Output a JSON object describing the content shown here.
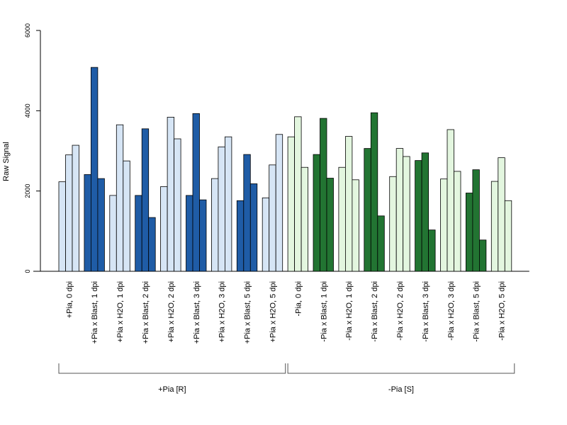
{
  "chart_data": {
    "type": "bar",
    "ylabel": "Raw Signal",
    "xlabel": "",
    "ylim": [
      0,
      6000
    ],
    "yticks": [
      0,
      2000,
      4000,
      6000
    ],
    "grid": false,
    "colors": {
      "pia_plus_control": "#d6e5f5",
      "pia_plus_blast": "#1f5ca6",
      "pia_minus_control": "#e3f6df",
      "pia_minus_blast": "#227432"
    },
    "categories": [
      {
        "label": "+Pia, 0 dpi",
        "values": [
          2230,
          2900,
          3140
        ],
        "color_key": "pia_plus_control"
      },
      {
        "label": "+Pia x Blast, 1 dpi",
        "values": [
          2410,
          5080,
          2310
        ],
        "color_key": "pia_plus_blast"
      },
      {
        "label": "+Pia x H2O, 1 dpi",
        "values": [
          1890,
          3650,
          2750
        ],
        "color_key": "pia_plus_control"
      },
      {
        "label": "+Pia x Blast, 2 dpi",
        "values": [
          1890,
          3550,
          1340
        ],
        "color_key": "pia_plus_blast"
      },
      {
        "label": "+Pia x H2O, 2 dpi",
        "values": [
          2110,
          3840,
          3300
        ],
        "color_key": "pia_plus_control"
      },
      {
        "label": "+Pia x Blast, 3 dpi",
        "values": [
          1890,
          3930,
          1780
        ],
        "color_key": "pia_plus_blast"
      },
      {
        "label": "+Pia x H2O, 3 dpi",
        "values": [
          2310,
          3100,
          3350
        ],
        "color_key": "pia_plus_control"
      },
      {
        "label": "+Pia x Blast, 5 dpi",
        "values": [
          1760,
          2910,
          2180
        ],
        "color_key": "pia_plus_blast"
      },
      {
        "label": "+Pia x H2O, 5 dpi",
        "values": [
          1830,
          2650,
          3410
        ],
        "color_key": "pia_plus_control"
      },
      {
        "label": "-Pia, 0 dpi",
        "values": [
          3350,
          3850,
          2590
        ],
        "color_key": "pia_minus_control"
      },
      {
        "label": "-Pia x Blast, 1 dpi",
        "values": [
          2910,
          3810,
          2320
        ],
        "color_key": "pia_minus_blast"
      },
      {
        "label": "-Pia x H2O, 1 dpi",
        "values": [
          2590,
          3360,
          2280
        ],
        "color_key": "pia_minus_control"
      },
      {
        "label": "-Pia x Blast, 2 dpi",
        "values": [
          3060,
          3950,
          1380
        ],
        "color_key": "pia_minus_blast"
      },
      {
        "label": "-Pia x H2O, 2 dpi",
        "values": [
          2360,
          3060,
          2860
        ],
        "color_key": "pia_minus_control"
      },
      {
        "label": "-Pia x Blast, 3 dpi",
        "values": [
          2760,
          2950,
          1030
        ],
        "color_key": "pia_minus_blast"
      },
      {
        "label": "-Pia x H2O, 3 dpi",
        "values": [
          2300,
          3530,
          2490
        ],
        "color_key": "pia_minus_control"
      },
      {
        "label": "-Pia x Blast, 5 dpi",
        "values": [
          1950,
          2530,
          780
        ],
        "color_key": "pia_minus_blast"
      },
      {
        "label": "-Pia x H2O, 5 dpi",
        "values": [
          2240,
          2830,
          1760
        ],
        "color_key": "pia_minus_control"
      }
    ],
    "groups": [
      {
        "label": "+Pia [R]",
        "from": 0,
        "to": 8
      },
      {
        "label": "-Pia [S]",
        "from": 9,
        "to": 17
      }
    ]
  }
}
